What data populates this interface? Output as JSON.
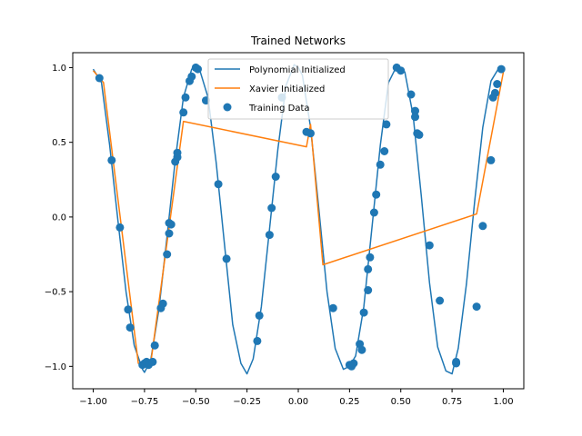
{
  "chart_data": {
    "type": "line",
    "title": "Trained Networks",
    "xlabel": "",
    "ylabel": "",
    "xlim": [
      -1.1,
      1.1
    ],
    "ylim": [
      -1.15,
      1.1
    ],
    "xticks": [
      -1.0,
      -0.75,
      -0.5,
      -0.25,
      0.0,
      0.25,
      0.5,
      0.75,
      1.0
    ],
    "xtick_labels": [
      "−1.00",
      "−0.75",
      "−0.50",
      "−0.25",
      "0.00",
      "0.25",
      "0.50",
      "0.75",
      "1.00"
    ],
    "yticks": [
      -1.0,
      -0.5,
      0.0,
      0.5,
      1.0
    ],
    "ytick_labels": [
      "−1.0",
      "−0.5",
      "0.0",
      "0.5",
      "1.0"
    ],
    "grid": false,
    "legend_position": "top-center",
    "series": [
      {
        "name": "Polynomial Initialized",
        "type": "line",
        "color": "#1f77b4",
        "x": [
          -1.0,
          -0.96,
          -0.92,
          -0.88,
          -0.84,
          -0.8,
          -0.76,
          -0.75,
          -0.72,
          -0.68,
          -0.64,
          -0.6,
          -0.56,
          -0.52,
          -0.5,
          -0.48,
          -0.44,
          -0.4,
          -0.36,
          -0.32,
          -0.28,
          -0.25,
          -0.22,
          -0.18,
          -0.14,
          -0.1,
          -0.06,
          -0.02,
          0.0,
          0.02,
          0.06,
          0.1,
          0.14,
          0.18,
          0.22,
          0.25,
          0.28,
          0.32,
          0.36,
          0.4,
          0.44,
          0.48,
          0.5,
          0.52,
          0.56,
          0.6,
          0.64,
          0.68,
          0.72,
          0.75,
          0.78,
          0.82,
          0.86,
          0.9,
          0.94,
          0.98,
          1.0
        ],
        "y": [
          0.99,
          0.9,
          0.48,
          -0.02,
          -0.5,
          -0.86,
          -1.02,
          -1.04,
          -0.96,
          -0.62,
          -0.13,
          0.38,
          0.8,
          0.99,
          1.0,
          0.98,
          0.8,
          0.36,
          -0.18,
          -0.72,
          -0.98,
          -1.05,
          -0.95,
          -0.6,
          -0.08,
          0.45,
          0.88,
          1.02,
          1.0,
          0.95,
          0.6,
          0.06,
          -0.5,
          -0.88,
          -1.02,
          -1.0,
          -0.93,
          -0.6,
          -0.06,
          0.48,
          0.9,
          1.01,
          1.0,
          0.97,
          0.68,
          0.14,
          -0.44,
          -0.87,
          -1.03,
          -1.05,
          -0.88,
          -0.45,
          0.1,
          0.6,
          0.91,
          1.0,
          0.98
        ]
      },
      {
        "name": "Xavier Initialized",
        "type": "line",
        "color": "#ff7f0e",
        "x": [
          -1.0,
          -0.95,
          -0.78,
          -0.72,
          -0.56,
          0.04,
          0.06,
          0.12,
          0.87,
          1.0
        ],
        "y": [
          0.98,
          0.9,
          -0.98,
          -0.98,
          0.64,
          0.47,
          0.62,
          -0.32,
          0.02,
          0.97
        ]
      },
      {
        "name": "Training Data",
        "type": "scatter",
        "color": "#1f77b4",
        "x": [
          -0.97,
          -0.91,
          -0.87,
          -0.83,
          -0.82,
          -0.76,
          -0.75,
          -0.74,
          -0.73,
          -0.71,
          -0.7,
          -0.67,
          -0.66,
          -0.64,
          -0.63,
          -0.63,
          -0.62,
          -0.6,
          -0.59,
          -0.59,
          -0.56,
          -0.55,
          -0.53,
          -0.52,
          -0.5,
          -0.49,
          -0.45,
          -0.39,
          -0.35,
          -0.2,
          -0.19,
          -0.14,
          -0.13,
          -0.11,
          -0.08,
          0.04,
          0.06,
          0.17,
          0.25,
          0.26,
          0.27,
          0.3,
          0.31,
          0.32,
          0.34,
          0.34,
          0.35,
          0.37,
          0.38,
          0.4,
          0.42,
          0.43,
          0.48,
          0.5,
          0.55,
          0.57,
          0.57,
          0.58,
          0.59,
          0.64,
          0.69,
          0.77,
          0.77,
          0.87,
          0.9,
          0.94,
          0.95,
          0.96,
          0.97,
          0.99
        ],
        "y": [
          0.93,
          0.38,
          -0.07,
          -0.62,
          -0.74,
          -0.99,
          -0.98,
          -0.97,
          -0.99,
          -0.97,
          -0.86,
          -0.61,
          -0.58,
          -0.25,
          -0.11,
          -0.04,
          -0.05,
          0.37,
          0.4,
          0.43,
          0.7,
          0.8,
          0.91,
          0.94,
          1.0,
          0.99,
          0.78,
          0.22,
          -0.28,
          -0.83,
          -0.66,
          -0.12,
          0.06,
          0.27,
          0.8,
          0.57,
          0.56,
          -0.61,
          -0.99,
          -1.0,
          -0.98,
          -0.85,
          -0.89,
          -0.64,
          -0.49,
          -0.35,
          -0.27,
          0.03,
          0.15,
          0.35,
          0.44,
          0.62,
          1.0,
          0.98,
          0.82,
          0.71,
          0.67,
          0.56,
          0.55,
          -0.19,
          -0.56,
          -0.97,
          -0.98,
          -0.6,
          -0.06,
          0.38,
          0.8,
          0.83,
          0.89,
          0.99
        ]
      }
    ]
  }
}
